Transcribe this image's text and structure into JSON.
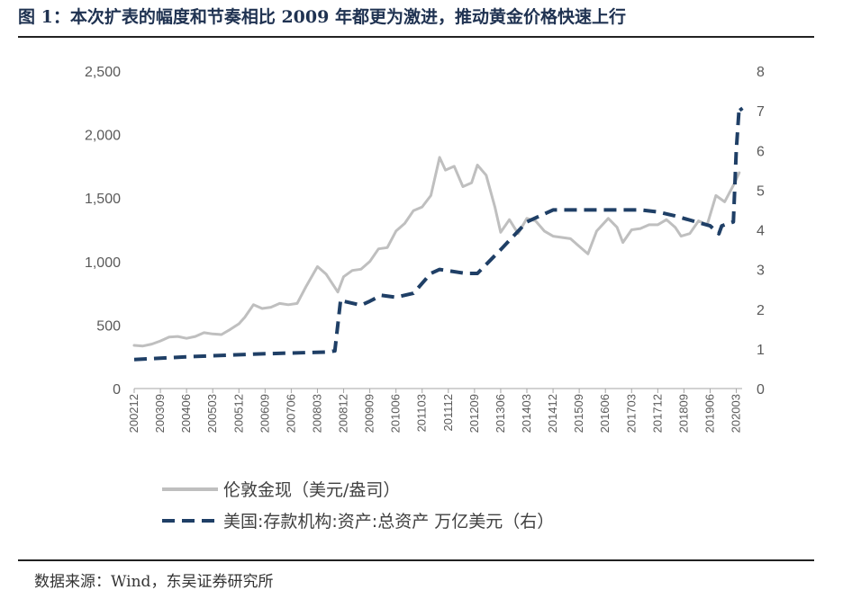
{
  "title": "图 1：本次扩表的幅度和节奏相比 2009 年都更为激进，推动黄金价格快速上行",
  "source": "数据来源：Wind，东吴证券研究所",
  "chart_data": {
    "type": "line",
    "x_tick_labels": [
      "200212",
      "200309",
      "200406",
      "200503",
      "200512",
      "200609",
      "200706",
      "200803",
      "200812",
      "200909",
      "201006",
      "201103",
      "201112",
      "201209",
      "201306",
      "201403",
      "201412",
      "201509",
      "201606",
      "201703",
      "201712",
      "201809",
      "201906",
      "202003"
    ],
    "y_left": {
      "ticks": [
        "0",
        "500",
        "1,000",
        "1,500",
        "2,000",
        "2,500"
      ],
      "lim": [
        0,
        2500
      ]
    },
    "y_right": {
      "ticks": [
        "0",
        "1",
        "2",
        "3",
        "4",
        "5",
        "6",
        "7",
        "8"
      ],
      "lim": [
        0,
        8
      ]
    },
    "legend_position": "bottom",
    "grid": false,
    "series": [
      {
        "name": "伦敦金现（美元/盎司）",
        "axis": "left",
        "color": "#bfbfbf",
        "style": "solid",
        "x": [
          "2002-12",
          "2003-03",
          "2003-06",
          "2003-09",
          "2003-12",
          "2004-03",
          "2004-06",
          "2004-09",
          "2004-12",
          "2005-03",
          "2005-06",
          "2005-09",
          "2005-12",
          "2006-02",
          "2006-05",
          "2006-08",
          "2006-11",
          "2007-02",
          "2007-05",
          "2007-08",
          "2007-11",
          "2008-03",
          "2008-06",
          "2008-10",
          "2008-12",
          "2009-03",
          "2009-06",
          "2009-09",
          "2009-12",
          "2010-03",
          "2010-06",
          "2010-09",
          "2010-12",
          "2011-03",
          "2011-06",
          "2011-09",
          "2011-11",
          "2012-02",
          "2012-05",
          "2012-08",
          "2012-10",
          "2013-01",
          "2013-04",
          "2013-06",
          "2013-09",
          "2013-12",
          "2014-03",
          "2014-06",
          "2014-09",
          "2014-12",
          "2015-03",
          "2015-06",
          "2015-09",
          "2015-12",
          "2016-03",
          "2016-07",
          "2016-10",
          "2016-12",
          "2017-03",
          "2017-06",
          "2017-09",
          "2017-12",
          "2018-03",
          "2018-06",
          "2018-08",
          "2018-11",
          "2019-02",
          "2019-05",
          "2019-08",
          "2019-11",
          "2020-02",
          "2020-04"
        ],
        "y": [
          340,
          335,
          350,
          375,
          405,
          410,
          395,
          410,
          440,
          430,
          425,
          465,
          510,
          560,
          660,
          630,
          640,
          670,
          660,
          670,
          800,
          960,
          900,
          760,
          880,
          930,
          940,
          1000,
          1100,
          1110,
          1240,
          1300,
          1400,
          1430,
          1520,
          1820,
          1720,
          1750,
          1590,
          1620,
          1760,
          1680,
          1430,
          1230,
          1330,
          1220,
          1340,
          1320,
          1240,
          1200,
          1190,
          1180,
          1120,
          1060,
          1240,
          1340,
          1270,
          1150,
          1250,
          1260,
          1290,
          1290,
          1330,
          1270,
          1200,
          1220,
          1320,
          1290,
          1520,
          1470,
          1600,
          1700
        ]
      },
      {
        "name": "美国:存款机构:资产:总资产 万亿美元（右）",
        "axis": "right",
        "color": "#1f3f66",
        "style": "dashed",
        "x": [
          "2002-12",
          "2004-06",
          "2006-06",
          "2008-06",
          "2008-09",
          "2008-11",
          "2008-12",
          "2009-06",
          "2009-09",
          "2010-01",
          "2010-06",
          "2010-12",
          "2011-06",
          "2011-09",
          "2012-06",
          "2012-10",
          "2013-06",
          "2014-03",
          "2014-12",
          "2015-06",
          "2016-06",
          "2017-06",
          "2017-12",
          "2018-06",
          "2019-06",
          "2019-09",
          "2019-10",
          "2020-02",
          "2020-03",
          "2020-04",
          "2020-05"
        ],
        "y": [
          0.73,
          0.8,
          0.87,
          0.92,
          0.95,
          2.25,
          2.2,
          2.1,
          2.2,
          2.35,
          2.3,
          2.4,
          2.9,
          3.0,
          2.9,
          2.9,
          3.5,
          4.2,
          4.5,
          4.5,
          4.5,
          4.5,
          4.45,
          4.35,
          4.1,
          3.9,
          4.1,
          4.2,
          6.0,
          7.1,
          7.0
        ]
      }
    ]
  }
}
